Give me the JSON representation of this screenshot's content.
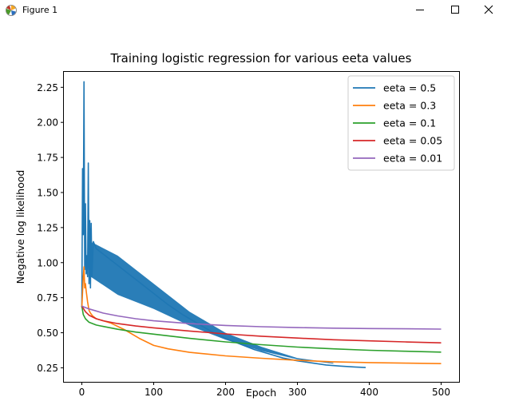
{
  "window": {
    "title": "Figure 1",
    "icon": "matplotlib-icon"
  },
  "colors": {
    "series": [
      "#1f77b4",
      "#ff7f0e",
      "#2ca02c",
      "#d62728",
      "#9467bd"
    ]
  },
  "chart_data": {
    "type": "line",
    "title": "Training logistic regression for various eeta values",
    "xlabel": "Epoch",
    "ylabel": "Negative log likelihood",
    "xlim": [
      -25,
      525
    ],
    "ylim": [
      0.15,
      2.36
    ],
    "xticks": [
      0,
      100,
      200,
      300,
      400,
      500
    ],
    "yticks": [
      0.25,
      0.5,
      0.75,
      1.0,
      1.25,
      1.5,
      1.75,
      2.0,
      2.25
    ],
    "xtick_labels": [
      "0",
      "100",
      "200",
      "300",
      "400",
      "500"
    ],
    "ytick_labels": [
      "0.25",
      "0.50",
      "0.75",
      "1.00",
      "1.25",
      "1.50",
      "1.75",
      "2.00",
      "2.25"
    ],
    "grid": false,
    "legend_position": "top-right",
    "series": [
      {
        "name": "eeta = 0.5",
        "color": "#1f77b4",
        "x": [
          0,
          1,
          2,
          3,
          4,
          5,
          6,
          7,
          8,
          9,
          10,
          11,
          12,
          13,
          14,
          16,
          20,
          40,
          60,
          80,
          100,
          120,
          140,
          160,
          180,
          200,
          220,
          240,
          260,
          280,
          300,
          320,
          340,
          360,
          380,
          395
        ],
        "y": [
          0.68,
          1.67,
          1.2,
          2.29,
          0.95,
          1.42,
          0.92,
          1.05,
          0.9,
          1.71,
          0.85,
          1.3,
          0.82,
          1.28,
          0.9,
          1.15,
          1.1,
          1.02,
          0.94,
          0.86,
          0.78,
          0.7,
          0.63,
          0.57,
          0.51,
          0.46,
          0.42,
          0.38,
          0.35,
          0.32,
          0.3,
          0.285,
          0.27,
          0.262,
          0.256,
          0.252
        ],
        "band_x": [
          12,
          50,
          100,
          150,
          200,
          250,
          300,
          350
        ],
        "band_low": [
          0.9,
          0.77,
          0.67,
          0.55,
          0.45,
          0.37,
          0.31,
          0.28
        ],
        "band_high": [
          1.15,
          1.05,
          0.85,
          0.65,
          0.5,
          0.4,
          0.32,
          0.285
        ]
      },
      {
        "name": "eeta = 0.3",
        "color": "#ff7f0e",
        "x": [
          0,
          2,
          3,
          4,
          5,
          6,
          8,
          10,
          12,
          15,
          20,
          30,
          40,
          60,
          80,
          100,
          120,
          150,
          200,
          250,
          300,
          350,
          400,
          450,
          500
        ],
        "y": [
          0.68,
          0.9,
          0.97,
          0.82,
          0.85,
          0.8,
          0.72,
          0.66,
          0.64,
          0.62,
          0.6,
          0.585,
          0.57,
          0.52,
          0.46,
          0.41,
          0.385,
          0.36,
          0.335,
          0.318,
          0.303,
          0.293,
          0.287,
          0.283,
          0.28
        ]
      },
      {
        "name": "eeta = 0.1",
        "color": "#2ca02c",
        "x": [
          0,
          2,
          5,
          10,
          20,
          30,
          50,
          75,
          100,
          150,
          200,
          250,
          300,
          350,
          400,
          450,
          500
        ],
        "y": [
          0.69,
          0.63,
          0.6,
          0.575,
          0.555,
          0.545,
          0.525,
          0.505,
          0.49,
          0.46,
          0.435,
          0.415,
          0.398,
          0.385,
          0.375,
          0.368,
          0.362
        ]
      },
      {
        "name": "eeta = 0.05",
        "color": "#d62728",
        "x": [
          0,
          5,
          10,
          20,
          30,
          50,
          75,
          100,
          150,
          200,
          250,
          300,
          350,
          400,
          450,
          500
        ],
        "y": [
          0.69,
          0.65,
          0.625,
          0.6,
          0.585,
          0.565,
          0.548,
          0.535,
          0.512,
          0.492,
          0.475,
          0.462,
          0.45,
          0.442,
          0.435,
          0.428
        ]
      },
      {
        "name": "eeta = 0.01",
        "color": "#9467bd",
        "x": [
          0,
          5,
          10,
          20,
          30,
          50,
          75,
          100,
          150,
          200,
          250,
          300,
          350,
          400,
          450,
          500
        ],
        "y": [
          0.69,
          0.68,
          0.67,
          0.655,
          0.64,
          0.62,
          0.6,
          0.585,
          0.565,
          0.552,
          0.543,
          0.537,
          0.533,
          0.53,
          0.528,
          0.526
        ]
      }
    ]
  }
}
